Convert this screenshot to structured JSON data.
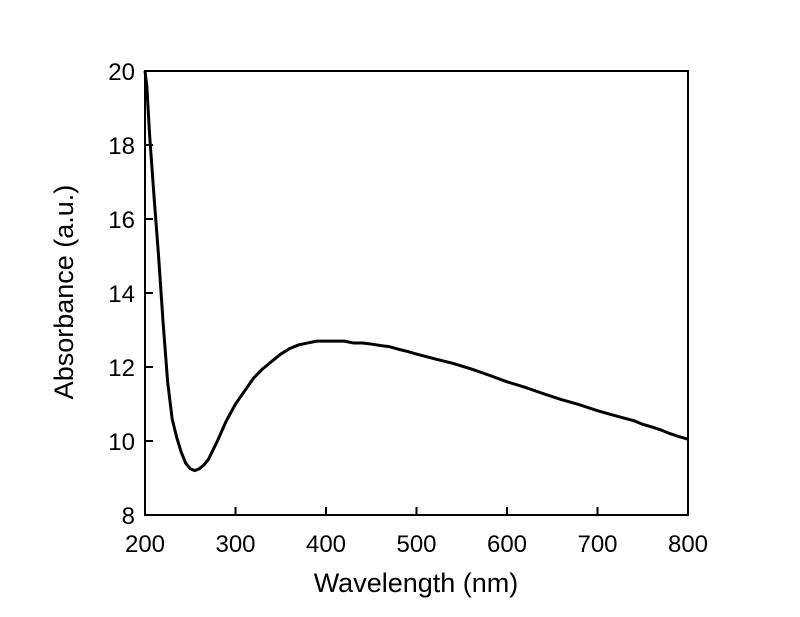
{
  "chart_data": {
    "type": "line",
    "title": "",
    "xlabel": "Wavelength (nm)",
    "ylabel": "Absorbance (a.u.)",
    "xlim": [
      200,
      800
    ],
    "ylim": [
      8,
      20
    ],
    "xticks": [
      200,
      300,
      400,
      500,
      600,
      700,
      800
    ],
    "yticks": [
      8,
      10,
      12,
      14,
      16,
      18,
      20
    ],
    "xtick_labels": [
      "200",
      "300",
      "400",
      "500",
      "600",
      "700",
      "800"
    ],
    "ytick_labels": [
      "8",
      "10",
      "12",
      "14",
      "16",
      "18",
      "20"
    ],
    "grid": false,
    "legend": "none",
    "line_color": "#000000",
    "series": [
      {
        "x": [
          200,
          202,
          205,
          210,
          215,
          220,
          225,
          230,
          235,
          240,
          245,
          250,
          255,
          260,
          265,
          270,
          275,
          280,
          290,
          300,
          310,
          320,
          330,
          340,
          350,
          360,
          370,
          380,
          390,
          400,
          410,
          420,
          430,
          440,
          450,
          460,
          470,
          480,
          490,
          500,
          520,
          540,
          560,
          580,
          600,
          620,
          640,
          660,
          680,
          700,
          720,
          740,
          750,
          760,
          770,
          780,
          790,
          800
        ],
        "y": [
          20.0,
          19.6,
          18.3,
          16.6,
          15.0,
          13.2,
          11.6,
          10.6,
          10.1,
          9.7,
          9.4,
          9.25,
          9.2,
          9.25,
          9.35,
          9.5,
          9.75,
          10.0,
          10.55,
          11.0,
          11.35,
          11.7,
          11.95,
          12.15,
          12.35,
          12.5,
          12.6,
          12.65,
          12.7,
          12.7,
          12.7,
          12.7,
          12.65,
          12.65,
          12.62,
          12.58,
          12.55,
          12.48,
          12.42,
          12.35,
          12.22,
          12.1,
          11.95,
          11.78,
          11.6,
          11.45,
          11.28,
          11.12,
          10.98,
          10.82,
          10.68,
          10.55,
          10.45,
          10.38,
          10.3,
          10.2,
          10.12,
          10.05
        ]
      }
    ]
  }
}
